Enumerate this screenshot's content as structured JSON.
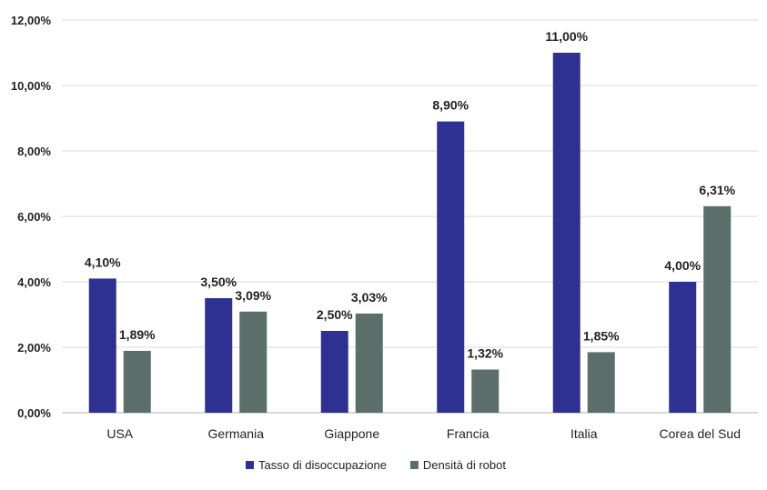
{
  "chart_data": {
    "type": "bar",
    "title": "",
    "xlabel": "",
    "ylabel": "",
    "categories": [
      "USA",
      "Germania",
      "Giappone",
      "Francia",
      "Italia",
      "Corea del Sud"
    ],
    "series": [
      {
        "name": "Tasso di disoccupazione",
        "color": "#2e3192",
        "values": [
          4.1,
          3.5,
          2.5,
          8.9,
          11.0,
          4.0
        ],
        "labels": [
          "4,10%",
          "3,50%",
          "2,50%",
          "8,90%",
          "11,00%",
          "4,00%"
        ]
      },
      {
        "name": "Densità di robot",
        "color": "#5b6e6a",
        "values": [
          1.89,
          3.09,
          3.03,
          1.32,
          1.85,
          6.31
        ],
        "labels": [
          "1,89%",
          "3,09%",
          "3,03%",
          "1,32%",
          "1,85%",
          "6,31%"
        ]
      }
    ],
    "ylim": [
      0,
      12
    ],
    "yticks": [
      {
        "value": 0,
        "label": "0,00%"
      },
      {
        "value": 2,
        "label": "2,00%"
      },
      {
        "value": 4,
        "label": "4,00%"
      },
      {
        "value": 6,
        "label": "6,00%"
      },
      {
        "value": 8,
        "label": "8,00%"
      },
      {
        "value": 10,
        "label": "10,00%"
      },
      {
        "value": 12,
        "label": "12,00%"
      }
    ],
    "grid": true,
    "legend_position": "bottom-center"
  }
}
